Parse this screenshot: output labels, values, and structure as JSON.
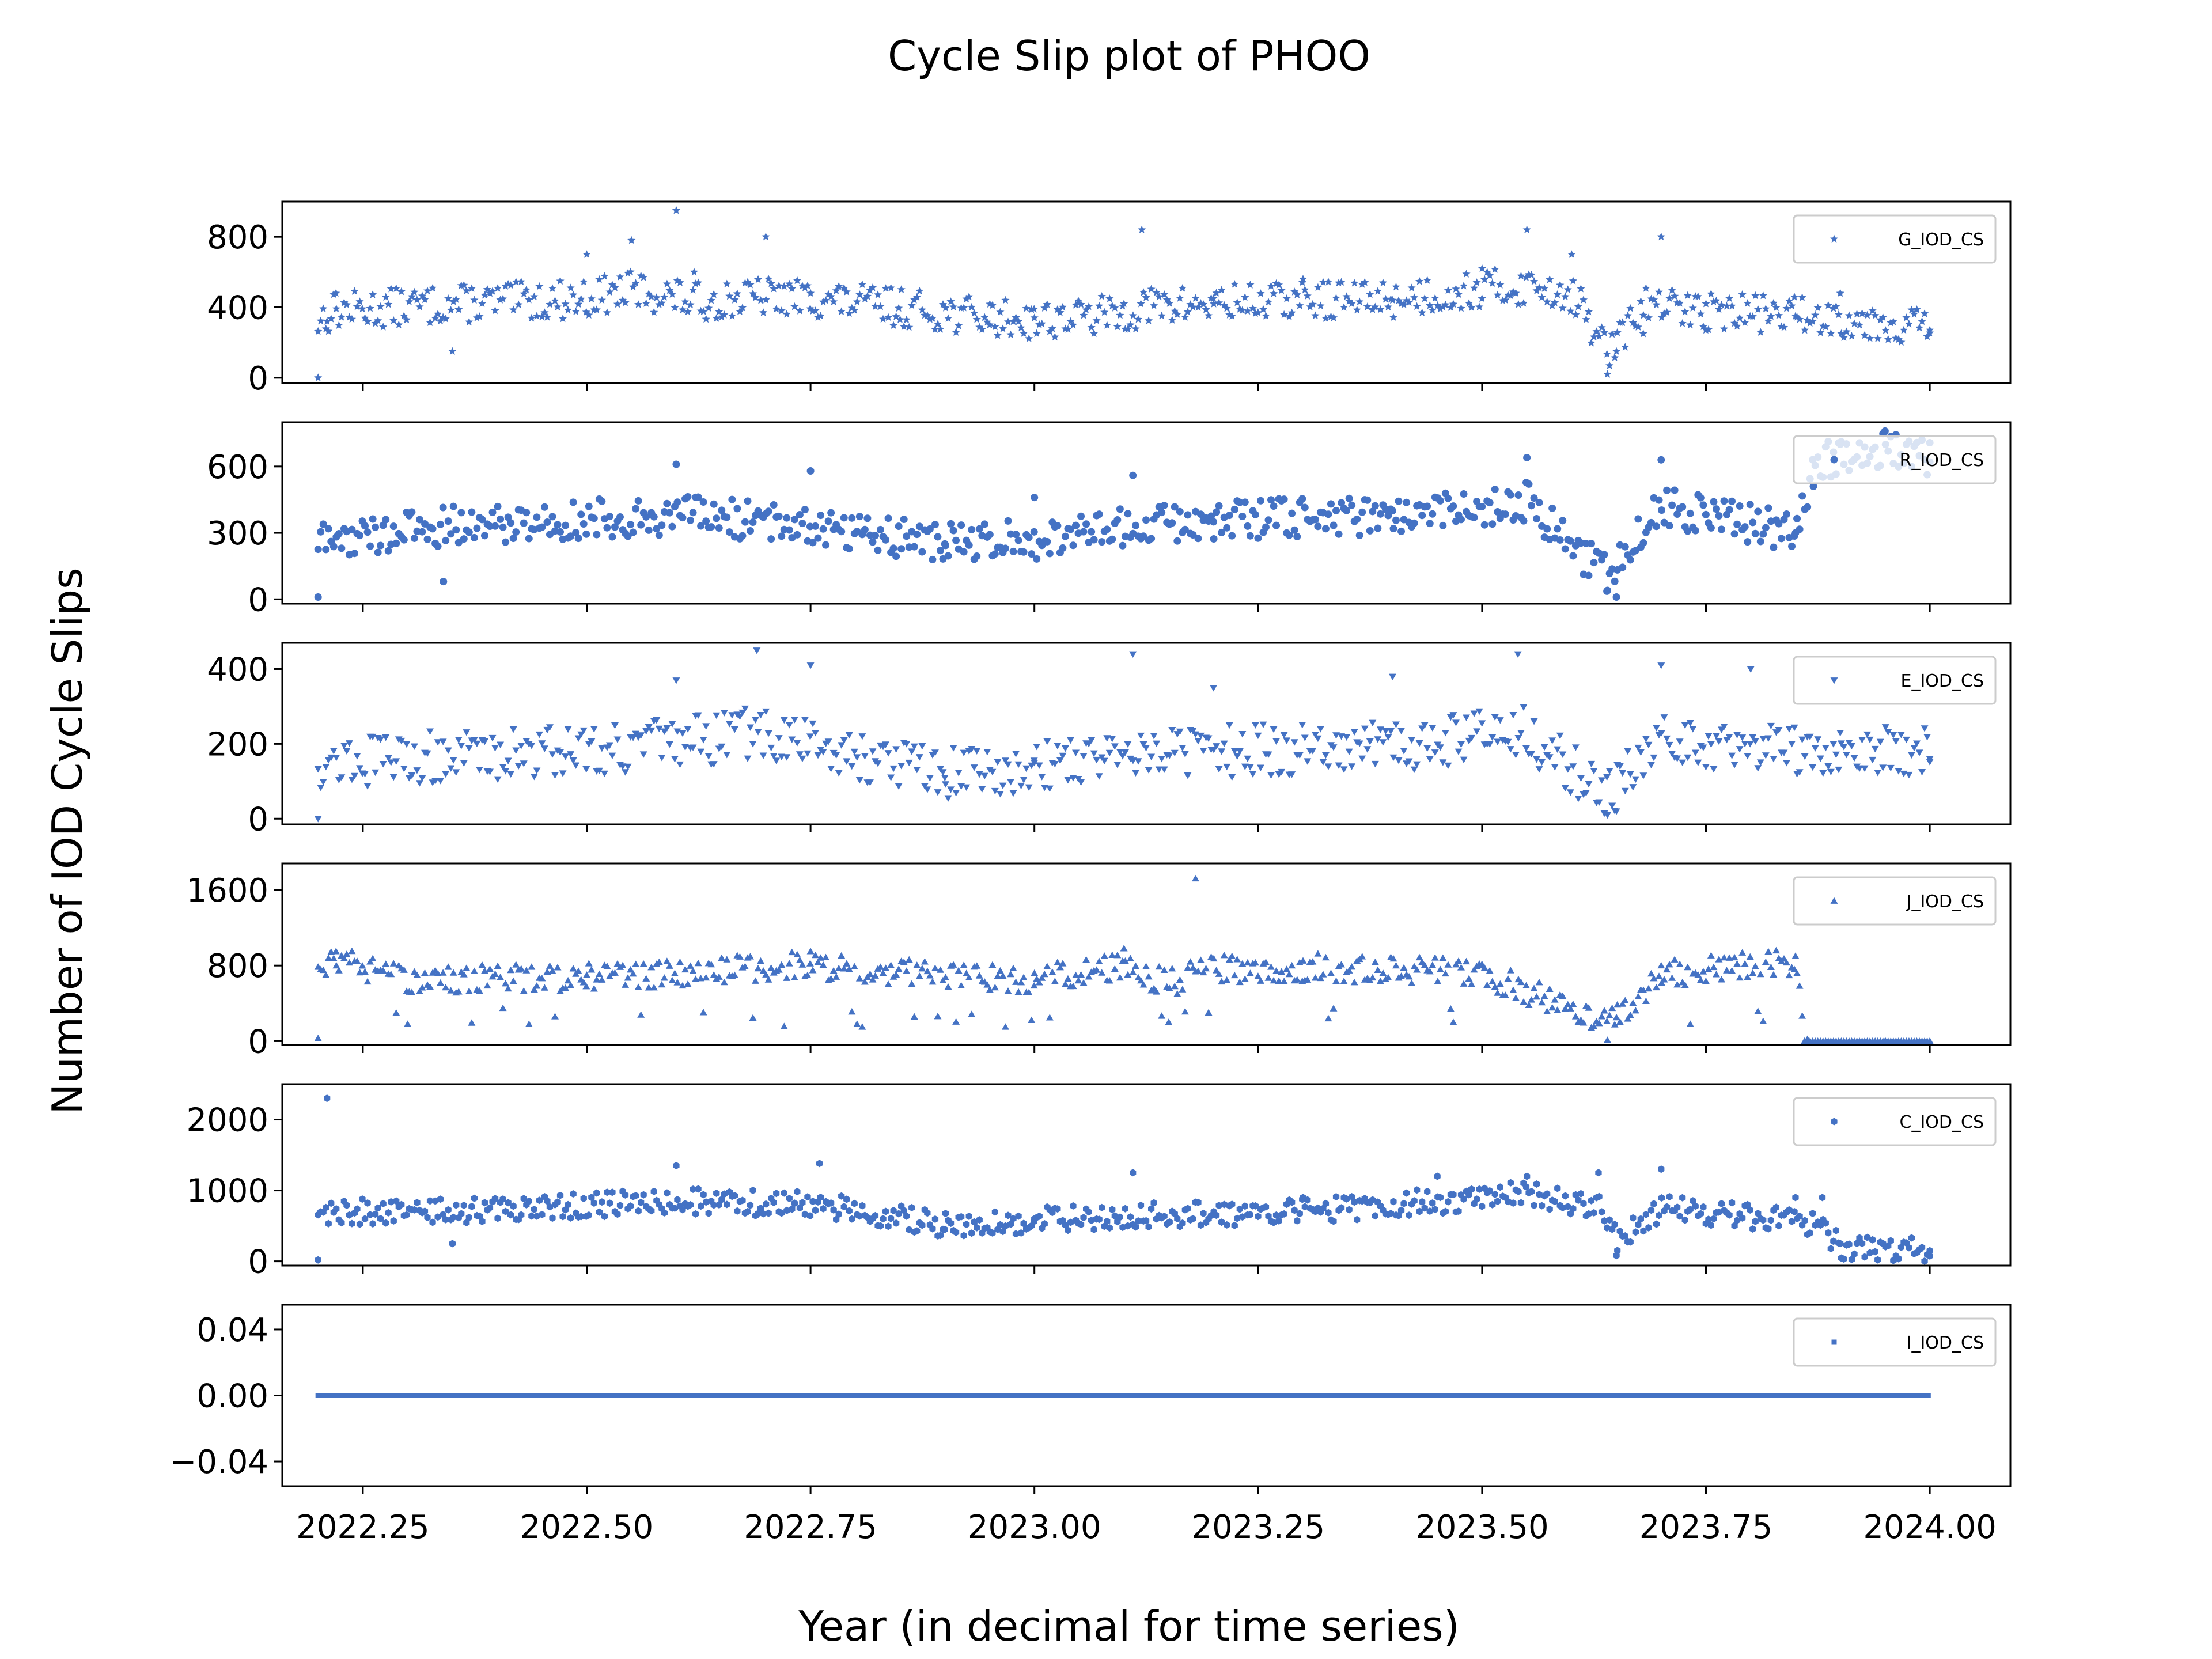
{
  "chart_data": {
    "type": "scatter",
    "title": "Cycle Slip plot of PHOO",
    "xlabel": "Year (in decimal for time series)",
    "ylabel": "Number of IOD Cycle Slips",
    "x_range": [
      2022.2,
      2024.0
    ],
    "xlim": [
      2022.16,
      2024.09
    ],
    "x_ticks": [
      "2022.25",
      "2022.50",
      "2022.75",
      "2023.00",
      "2023.25",
      "2023.50",
      "2023.75",
      "2024.00"
    ],
    "x_tick_values": [
      2022.25,
      2022.5,
      2022.75,
      2023.0,
      2023.25,
      2023.5,
      2023.75,
      2024.0
    ],
    "color": "#4472C4",
    "grid": false,
    "legend_placement": "upper right",
    "panels": [
      {
        "name": "G_IOD_CS",
        "marker": "star",
        "ylim": [
          -30,
          1000
        ],
        "y_ticks": [
          "0",
          "400",
          "800"
        ],
        "y_tick_values": [
          0,
          400,
          800
        ],
        "x": [
          2022.2,
          2022.21,
          2022.22,
          2022.35,
          2022.5,
          2022.55,
          2022.6,
          2022.62,
          2022.7,
          2022.75,
          2022.85,
          2022.95,
          2023.0,
          2023.1,
          2023.12,
          2023.2,
          2023.3,
          2023.4,
          2023.5,
          2023.55,
          2023.6,
          2023.64,
          2023.65,
          2023.68,
          2023.7,
          2023.75,
          2023.85,
          2023.9,
          2024.0
        ],
        "y": [
          0,
          320,
          480,
          150,
          700,
          780,
          950,
          600,
          800,
          480,
          330,
          300,
          340,
          420,
          840,
          450,
          560,
          440,
          620,
          840,
          700,
          20,
          150,
          250,
          800,
          420,
          350,
          480,
          270
        ],
        "baseline": [
          320,
          360,
          380,
          420,
          450,
          500,
          460,
          430,
          460,
          450,
          400,
          340,
          330,
          360,
          400,
          420,
          440,
          450,
          500,
          520,
          480,
          150,
          180,
          420,
          400,
          380,
          360,
          340,
          290
        ],
        "spread": 110
      },
      {
        "name": "R_IOD_CS",
        "marker": "circle",
        "ylim": [
          -20,
          800
        ],
        "y_ticks": [
          "0",
          "300",
          "600"
        ],
        "y_tick_values": [
          0,
          300,
          600
        ],
        "x": [
          2022.2,
          2022.34,
          2022.6,
          2022.75,
          2022.9,
          2023.0,
          2023.11,
          2023.2,
          2023.4,
          2023.55,
          2023.64,
          2023.65,
          2023.7,
          2023.85,
          2023.87,
          2023.9,
          2023.95,
          2024.0
        ],
        "y": [
          10,
          80,
          610,
          580,
          250,
          460,
          560,
          350,
          400,
          640,
          40,
          10,
          630,
          300,
          510,
          700,
          760,
          620
        ],
        "baseline": [
          260,
          330,
          380,
          340,
          250,
          270,
          330,
          360,
          380,
          440,
          100,
          150,
          420,
          300,
          600,
          650,
          680,
          650
        ],
        "spread": 90
      },
      {
        "name": "E_IOD_CS",
        "marker": "triangle-down",
        "ylim": [
          -15,
          470
        ],
        "y_ticks": [
          "0",
          "200",
          "400"
        ],
        "y_tick_values": [
          0,
          200,
          400
        ],
        "x": [
          2022.2,
          2022.6,
          2022.69,
          2022.75,
          2022.9,
          2023.0,
          2023.11,
          2023.2,
          2023.4,
          2023.54,
          2023.64,
          2023.65,
          2023.7,
          2023.8,
          2023.9,
          2024.0
        ],
        "y": [
          0,
          370,
          450,
          410,
          110,
          150,
          440,
          350,
          380,
          440,
          10,
          20,
          410,
          400,
          230,
          160
        ],
        "baseline": [
          150,
          200,
          230,
          200,
          120,
          140,
          190,
          180,
          190,
          240,
          60,
          80,
          220,
          190,
          190,
          180
        ],
        "spread": 70
      },
      {
        "name": "J_IOD_CS",
        "marker": "triangle-up",
        "ylim": [
          -40,
          1880
        ],
        "y_ticks": [
          "0",
          "800",
          "1600"
        ],
        "y_tick_values": [
          0,
          800,
          1600
        ],
        "x": [
          2022.2,
          2022.22,
          2022.3,
          2022.5,
          2022.75,
          2023.0,
          2023.1,
          2023.15,
          2023.18,
          2023.3,
          2023.5,
          2023.64,
          2023.65,
          2023.7,
          2023.85,
          2023.86,
          2023.95,
          2024.0
        ],
        "y": [
          30,
          950,
          180,
          700,
          950,
          720,
          980,
          200,
          1720,
          850,
          800,
          10,
          250,
          800,
          900,
          0,
          0,
          0
        ],
        "baseline": [
          800,
          850,
          650,
          680,
          800,
          650,
          800,
          600,
          750,
          780,
          720,
          200,
          260,
          720,
          830,
          0,
          0,
          0
        ],
        "spread": 150
      },
      {
        "name": "C_IOD_CS",
        "marker": "hexagon",
        "ylim": [
          -60,
          2500
        ],
        "y_ticks": [
          "0",
          "1000",
          "2000"
        ],
        "y_tick_values": [
          0,
          1000,
          2000
        ],
        "x": [
          2022.2,
          2022.21,
          2022.35,
          2022.6,
          2022.76,
          2022.9,
          2023.0,
          2023.11,
          2023.3,
          2023.45,
          2023.55,
          2023.63,
          2023.65,
          2023.7,
          2023.85,
          2023.88,
          2023.9,
          2024.0
        ],
        "y": [
          20,
          2300,
          250,
          1350,
          1380,
          450,
          600,
          1250,
          900,
          1200,
          1200,
          1250,
          80,
          1300,
          900,
          900,
          250,
          150
        ],
        "baseline": [
          650,
          700,
          700,
          850,
          800,
          500,
          580,
          650,
          700,
          850,
          950,
          750,
          300,
          750,
          580,
          500,
          200,
          160
        ],
        "spread": 180
      },
      {
        "name": "I_IOD_CS",
        "marker": "square",
        "ylim": [
          -0.055,
          0.055
        ],
        "y_ticks": [
          "0.04",
          "0.00",
          "−0.04"
        ],
        "y_tick_values": [
          0.04,
          0.0,
          -0.04
        ],
        "x": [
          2022.2,
          2024.0
        ],
        "y": [
          0.0,
          0.0
        ],
        "baseline": [
          0.0,
          0.0
        ],
        "spread": 0
      }
    ]
  }
}
